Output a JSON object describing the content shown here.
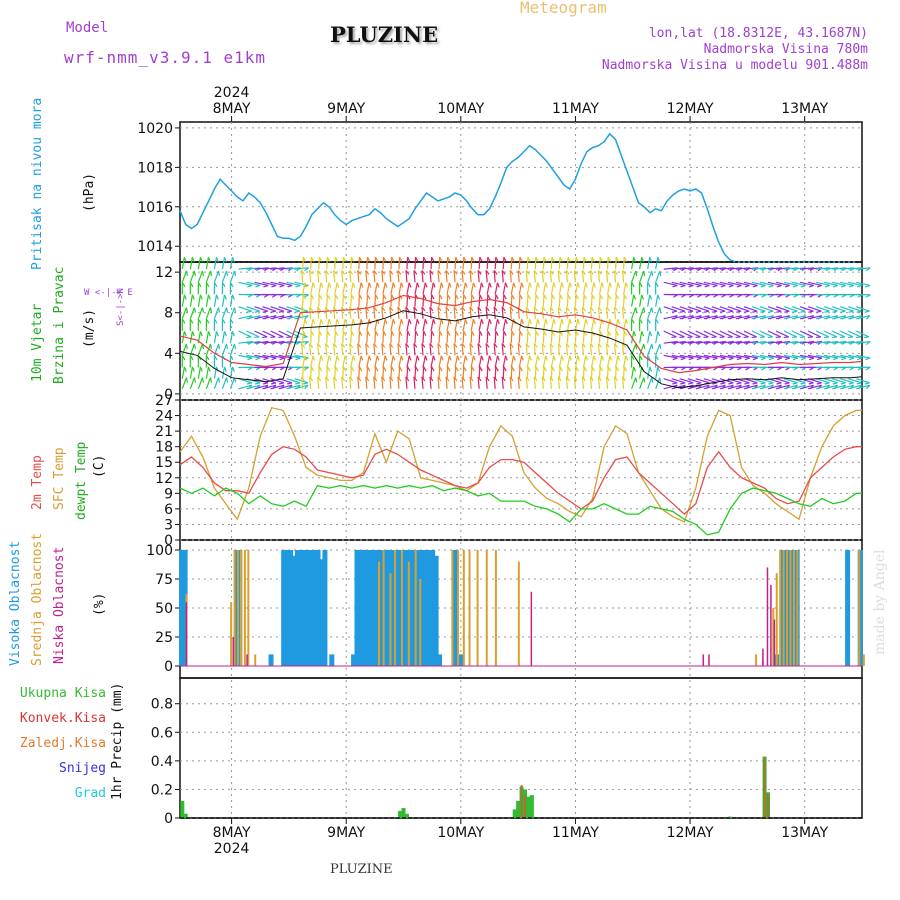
{
  "header": {
    "model_label": "Model",
    "model_name": "wrf-nmm_v3.9.1 e1km",
    "station": "PLUZINE",
    "meteogram_label": "Meteogram",
    "lonlat": "lon,lat (18.8312E, 43.1687N)",
    "elevation": "Nadmorska Visina 780m",
    "model_elevation": "Nadmorska Visina u modelu 901.488m"
  },
  "footer": {
    "station": "PLUZINE",
    "credit": "made by Angel"
  },
  "colors": {
    "pressure": "#1fa0e0",
    "temp2m": "#e84c4c",
    "sfc": "#d4a030",
    "dewpt": "#22cc22",
    "high_cloud": "#1f9ae0",
    "mid_cloud": "#d9a030",
    "low_cloud": "#c0208a",
    "precip_total": "#33bb33",
    "precip_conv": "#dd3333",
    "precip_frozen": "#e07a30",
    "snow": "#3333dd",
    "hail": "#22cccc",
    "accent_purple": "#a040d0"
  },
  "panels": {
    "pressure": {
      "label": "Pritisak na nivou mora",
      "unit": "(hPa)"
    },
    "wind": {
      "label1": "10m Vjetar",
      "label2": "Brzina i Pravac",
      "unit": "(m/s)",
      "compass": "W <-|-> E",
      "compass_ns": "S<-|->N"
    },
    "temp": {
      "label_2m": "2m Temp",
      "label_sfc": "SFC Temp",
      "label_dew": "dewpt Temp",
      "unit": "(C)"
    },
    "cloud": {
      "label_high": "Visoka Oblacnost",
      "label_mid": "Srednja Oblacnost",
      "label_low": "Niska Oblacnost",
      "unit": "(%)"
    },
    "precip": {
      "legend": [
        "Ukupna Kisa",
        "Konvek.Kisa",
        "Zaledj.Kisa",
        "Snijeg",
        "Grad"
      ],
      "unit": "1hr Precip (mm)"
    }
  },
  "chart_data": {
    "type": "meteogram",
    "time_axis": {
      "top_year": "2024",
      "bottom_year": "2024",
      "day_labels": [
        "8MAY",
        "9MAY",
        "10MAY",
        "11MAY",
        "12MAY",
        "13MAY"
      ],
      "range_days": [
        7.55,
        13.5
      ]
    },
    "pressure": {
      "ylabel": "(hPa)",
      "ylim": [
        1013.2,
        1020.3
      ],
      "ticks": [
        1014,
        1016,
        1018,
        1020
      ],
      "day": [
        7.55,
        7.6,
        7.65,
        7.7,
        7.75,
        7.8,
        7.85,
        7.9,
        7.95,
        8.0,
        8.05,
        8.1,
        8.15,
        8.2,
        8.25,
        8.3,
        8.35,
        8.4,
        8.45,
        8.5,
        8.55,
        8.6,
        8.65,
        8.7,
        8.75,
        8.8,
        8.85,
        8.9,
        8.95,
        9.0,
        9.05,
        9.1,
        9.15,
        9.2,
        9.25,
        9.3,
        9.35,
        9.4,
        9.45,
        9.5,
        9.55,
        9.6,
        9.65,
        9.7,
        9.75,
        9.8,
        9.85,
        9.9,
        9.95,
        10.0,
        10.05,
        10.1,
        10.15,
        10.2,
        10.25,
        10.3,
        10.35,
        10.4,
        10.45,
        10.5,
        10.55,
        10.6,
        10.65,
        10.7,
        10.75,
        10.8,
        10.85,
        10.9,
        10.95,
        11.0,
        11.05,
        11.1,
        11.15,
        11.2,
        11.25,
        11.3,
        11.35,
        11.4,
        11.45,
        11.5,
        11.55,
        11.6,
        11.65,
        11.7,
        11.75,
        11.8,
        11.85,
        11.9,
        11.95,
        12.0,
        12.05,
        12.1,
        12.15,
        12.2,
        12.25,
        12.3,
        12.35,
        12.4,
        12.45,
        12.5,
        12.55,
        12.6,
        12.65,
        12.7,
        12.75,
        12.8,
        12.85,
        12.9,
        12.95,
        13.0,
        13.05,
        13.1,
        13.15,
        13.2,
        13.25,
        13.3,
        13.35,
        13.4,
        13.45,
        13.5
      ],
      "values": [
        1015.8,
        1015.1,
        1014.9,
        1015.1,
        1015.7,
        1016.3,
        1016.9,
        1017.4,
        1017.1,
        1016.8,
        1016.5,
        1016.3,
        1016.7,
        1016.5,
        1016.2,
        1015.7,
        1015.1,
        1014.5,
        1014.4,
        1014.4,
        1014.3,
        1014.5,
        1015.0,
        1015.6,
        1015.9,
        1016.2,
        1016.0,
        1015.6,
        1015.3,
        1015.1,
        1015.3,
        1015.4,
        1015.5,
        1015.6,
        1015.9,
        1015.7,
        1015.4,
        1015.2,
        1015.0,
        1015.2,
        1015.4,
        1015.9,
        1016.3,
        1016.7,
        1016.5,
        1016.3,
        1016.4,
        1016.5,
        1016.7,
        1016.6,
        1016.3,
        1015.9,
        1015.6,
        1015.6,
        1015.9,
        1016.5,
        1017.2,
        1018.0,
        1018.3,
        1018.5,
        1018.8,
        1019.1,
        1018.9,
        1018.6,
        1018.3,
        1017.9,
        1017.5,
        1017.1,
        1016.9,
        1017.4,
        1018.2,
        1018.8,
        1019.0,
        1019.1,
        1019.3,
        1019.7,
        1019.4,
        1018.6,
        1017.8,
        1017.0,
        1016.2,
        1016.0,
        1015.7,
        1015.9,
        1015.8,
        1016.3,
        1016.6,
        1016.8,
        1016.9,
        1016.8,
        1016.9,
        1016.7,
        1015.9,
        1015.0,
        1014.2,
        1013.6,
        1013.3,
        1013.2,
        1013.2,
        1013.2,
        1013.2,
        1013.2,
        1013.2,
        1013.2,
        1013.2,
        1013.2,
        1013.2,
        1013.2,
        1013.2,
        1013.2,
        1013.2,
        1013.2,
        1013.2,
        1013.2,
        1013.2,
        1013.2,
        1013.2,
        1013.2,
        1013.2
      ]
    },
    "wind": {
      "ylabel": "(m/s)",
      "ylim": [
        -0.6,
        13
      ],
      "ticks": [
        0,
        4,
        8,
        12
      ],
      "day": [
        7.55,
        7.7,
        7.85,
        8.0,
        8.15,
        8.3,
        8.45,
        8.6,
        8.75,
        8.9,
        9.05,
        9.2,
        9.35,
        9.5,
        9.65,
        9.8,
        9.95,
        10.1,
        10.25,
        10.4,
        10.55,
        10.7,
        10.85,
        11.0,
        11.15,
        11.3,
        11.45,
        11.6,
        11.75,
        11.9,
        12.05,
        12.2,
        12.35,
        12.5,
        12.65,
        12.8,
        12.95,
        13.1,
        13.25,
        13.4,
        13.5
      ],
      "speed": [
        4.2,
        3.8,
        2.5,
        1.6,
        1.4,
        1.2,
        1.5,
        6.5,
        6.6,
        6.7,
        6.8,
        7.0,
        7.5,
        8.2,
        7.9,
        7.4,
        7.2,
        7.6,
        7.8,
        7.5,
        6.6,
        6.4,
        6.1,
        6.3,
        6.0,
        5.5,
        4.8,
        2.2,
        1.0,
        0.6,
        0.8,
        1.1,
        1.4,
        1.5,
        1.4,
        1.6,
        1.4,
        1.5,
        1.6,
        1.6,
        1.7
      ]
    },
    "temperature": {
      "ylabel": "(C)",
      "ylim": [
        0,
        27
      ],
      "ticks": [
        0,
        3,
        6,
        9,
        12,
        15,
        18,
        21,
        24,
        27
      ],
      "day": [
        7.55,
        7.65,
        7.75,
        7.85,
        7.95,
        8.05,
        8.15,
        8.25,
        8.35,
        8.45,
        8.55,
        8.65,
        8.75,
        8.85,
        8.95,
        9.05,
        9.15,
        9.25,
        9.35,
        9.45,
        9.55,
        9.65,
        9.75,
        9.85,
        9.95,
        10.05,
        10.15,
        10.25,
        10.35,
        10.45,
        10.55,
        10.65,
        10.75,
        10.85,
        10.95,
        11.05,
        11.15,
        11.25,
        11.35,
        11.45,
        11.55,
        11.65,
        11.75,
        11.85,
        11.95,
        12.05,
        12.15,
        12.25,
        12.35,
        12.45,
        12.55,
        12.65,
        12.75,
        12.85,
        12.95,
        13.05,
        13.15,
        13.25,
        13.35,
        13.45,
        13.5
      ],
      "t2m": [
        14.5,
        16.0,
        14.0,
        11.0,
        9.5,
        9.5,
        9.0,
        13.0,
        16.5,
        18.0,
        17.5,
        16.0,
        13.5,
        13.0,
        12.5,
        12.0,
        12.5,
        16.5,
        17.5,
        16.5,
        15.0,
        13.5,
        12.5,
        11.5,
        10.5,
        10.0,
        11.0,
        14.0,
        15.5,
        15.5,
        15.0,
        13.0,
        11.0,
        9.0,
        7.5,
        6.0,
        7.5,
        12.0,
        15.5,
        16.0,
        13.0,
        11.0,
        9.0,
        7.0,
        5.0,
        7.0,
        14.0,
        17.0,
        14.0,
        12.0,
        11.0,
        10.0,
        8.0,
        7.0,
        7.5,
        12.0,
        14.0,
        16.0,
        17.5,
        18.0,
        18.0
      ],
      "sfc": [
        17.0,
        20.0,
        16.0,
        10.0,
        7.0,
        4.0,
        10.0,
        20.0,
        25.5,
        25.0,
        20.0,
        14.0,
        12.5,
        12.0,
        11.5,
        11.5,
        13.0,
        20.5,
        15.0,
        21.0,
        19.5,
        12.0,
        11.5,
        11.0,
        10.5,
        9.5,
        11.0,
        18.0,
        22.0,
        20.0,
        13.0,
        10.0,
        8.0,
        7.0,
        5.5,
        4.5,
        8.0,
        18.0,
        22.0,
        20.5,
        13.0,
        9.5,
        6.0,
        4.5,
        3.5,
        10.0,
        20.0,
        25.0,
        24.0,
        14.0,
        10.5,
        9.0,
        7.0,
        5.5,
        4.0,
        12.0,
        18.0,
        22.0,
        24.0,
        25.0,
        25.0
      ],
      "dewpt": [
        10.0,
        9.0,
        10.0,
        8.5,
        10.0,
        9.0,
        7.0,
        8.5,
        7.0,
        6.5,
        7.5,
        6.5,
        10.5,
        10.0,
        10.5,
        10.0,
        10.5,
        10.0,
        10.5,
        10.0,
        10.5,
        10.0,
        10.5,
        9.5,
        10.0,
        9.5,
        8.5,
        9.0,
        7.5,
        7.5,
        7.5,
        6.5,
        6.0,
        5.0,
        3.5,
        6.0,
        6.0,
        7.0,
        6.0,
        5.0,
        5.0,
        6.5,
        6.0,
        5.5,
        4.0,
        3.0,
        1.0,
        1.5,
        6.0,
        9.0,
        10.0,
        9.5,
        9.0,
        8.0,
        7.0,
        6.5,
        8.0,
        7.0,
        7.5,
        9.0,
        9.0
      ]
    },
    "cloud": {
      "ylabel": "(%)",
      "ylim": [
        0,
        100
      ],
      "ticks": [
        0,
        25,
        50,
        75,
        100
      ],
      "high": [
        [
          7.56,
          100
        ],
        [
          7.59,
          100
        ],
        [
          8.05,
          100
        ],
        [
          8.34,
          10
        ],
        [
          8.45,
          100
        ],
        [
          8.48,
          100
        ],
        [
          8.51,
          100
        ],
        [
          8.54,
          95
        ],
        [
          8.57,
          100
        ],
        [
          8.6,
          100
        ],
        [
          8.63,
          100
        ],
        [
          8.66,
          100
        ],
        [
          8.69,
          100
        ],
        [
          8.72,
          100
        ],
        [
          8.75,
          100
        ],
        [
          8.78,
          92
        ],
        [
          8.81,
          100
        ],
        [
          8.87,
          10
        ],
        [
          9.06,
          10
        ],
        [
          9.09,
          100
        ],
        [
          9.12,
          100
        ],
        [
          9.15,
          100
        ],
        [
          9.18,
          100
        ],
        [
          9.21,
          100
        ],
        [
          9.24,
          100
        ],
        [
          9.27,
          100
        ],
        [
          9.3,
          100
        ],
        [
          9.33,
          100
        ],
        [
          9.36,
          100
        ],
        [
          9.39,
          100
        ],
        [
          9.42,
          100
        ],
        [
          9.45,
          100
        ],
        [
          9.48,
          100
        ],
        [
          9.51,
          100
        ],
        [
          9.54,
          100
        ],
        [
          9.57,
          100
        ],
        [
          9.6,
          100
        ],
        [
          9.63,
          100
        ],
        [
          9.66,
          100
        ],
        [
          9.69,
          100
        ],
        [
          9.72,
          100
        ],
        [
          9.75,
          100
        ],
        [
          9.78,
          95
        ],
        [
          9.81,
          10
        ],
        [
          9.95,
          100
        ],
        [
          10.0,
          10
        ],
        [
          12.8,
          100
        ],
        [
          12.83,
          100
        ],
        [
          12.86,
          100
        ],
        [
          12.9,
          100
        ],
        [
          12.93,
          100
        ],
        [
          12.75,
          10
        ],
        [
          13.37,
          100
        ],
        [
          13.48,
          100
        ]
      ],
      "mid": [
        [
          7.58,
          62
        ],
        [
          7.97,
          55
        ],
        [
          8.0,
          100
        ],
        [
          8.03,
          100
        ],
        [
          8.06,
          100
        ],
        [
          8.09,
          100
        ],
        [
          8.12,
          100
        ],
        [
          8.18,
          10
        ],
        [
          9.26,
          90
        ],
        [
          9.3,
          100
        ],
        [
          9.36,
          80
        ],
        [
          9.4,
          100
        ],
        [
          9.46,
          100
        ],
        [
          9.52,
          90
        ],
        [
          9.58,
          100
        ],
        [
          9.62,
          75
        ],
        [
          9.9,
          100
        ],
        [
          9.95,
          100
        ],
        [
          10.0,
          100
        ],
        [
          10.05,
          100
        ],
        [
          10.12,
          100
        ],
        [
          10.2,
          100
        ],
        [
          10.28,
          100
        ],
        [
          10.48,
          90
        ],
        [
          12.7,
          50
        ],
        [
          12.73,
          80
        ],
        [
          12.76,
          100
        ],
        [
          12.79,
          100
        ],
        [
          12.82,
          100
        ],
        [
          12.85,
          100
        ],
        [
          12.88,
          100
        ],
        [
          12.91,
          100
        ],
        [
          12.55,
          10
        ],
        [
          13.45,
          100
        ],
        [
          13.49,
          10
        ]
      ],
      "low": [
        [
          7.59,
          55
        ],
        [
          8.0,
          25
        ],
        [
          8.12,
          10
        ],
        [
          10.6,
          64
        ],
        [
          12.1,
          10
        ],
        [
          12.15,
          10
        ],
        [
          12.62,
          5
        ],
        [
          12.66,
          85
        ],
        [
          12.69,
          70
        ],
        [
          12.72,
          40
        ],
        [
          12.62,
          15
        ]
      ]
    },
    "precip": {
      "ylabel": "1hr Precip (mm)",
      "ylim": [
        0,
        0.98
      ],
      "ticks": [
        0,
        0.2,
        0.4,
        0.6,
        0.8
      ],
      "total": [
        [
          7.57,
          0.12
        ],
        [
          7.6,
          0.03
        ],
        [
          9.47,
          0.05
        ],
        [
          9.5,
          0.07
        ],
        [
          9.53,
          0.03
        ],
        [
          10.47,
          0.06
        ],
        [
          10.5,
          0.12
        ],
        [
          10.53,
          0.22
        ],
        [
          10.56,
          0.2
        ],
        [
          10.59,
          0.15
        ],
        [
          10.62,
          0.16
        ],
        [
          12.65,
          0.43
        ],
        [
          12.68,
          0.18
        ],
        [
          12.35,
          0.01
        ]
      ],
      "conv": [
        [
          10.53,
          0.23
        ],
        [
          10.56,
          0.16
        ],
        [
          12.65,
          0.42
        ],
        [
          12.68,
          0.17
        ]
      ]
    }
  }
}
